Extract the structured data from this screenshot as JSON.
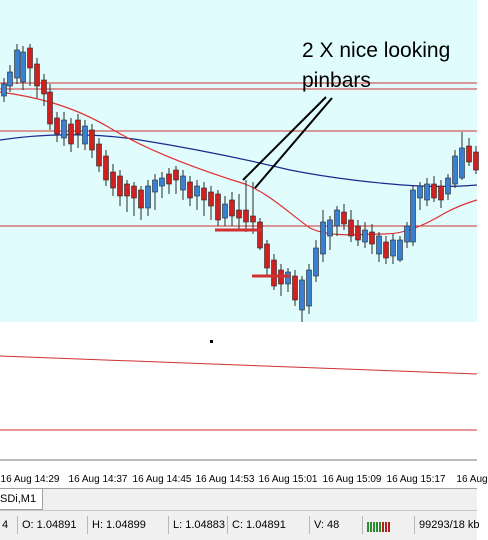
{
  "chart_data": {
    "type": "candlestick",
    "timeframe": "M1",
    "x_labels": [
      "16 Aug 14:29",
      "16 Aug 14:37",
      "16 Aug 14:45",
      "16 Aug 14:53",
      "16 Aug 15:01",
      "16 Aug 15:09",
      "16 Aug 15:17",
      "16 Aug"
    ],
    "annotation": [
      "2 X nice looking",
      "pinbars"
    ],
    "colors": {
      "highlight_zone": "#e0fcfc",
      "bull": "#3a7fd0",
      "bear": "#d02020",
      "wick": "#2a2a2a",
      "level_line": "#d03030",
      "ma_fast": "#e03030",
      "ma_slow": "#1a2a90",
      "arrow": "#000000"
    }
  },
  "tab": {
    "label": "SDi,M1"
  },
  "status": {
    "left_fragment": "4",
    "open": "O: 1.04891",
    "high": "H: 1.04899",
    "low": "L: 1.04883",
    "close": "C: 1.04891",
    "volume": "V: 48",
    "traffic": "99293/18 kb",
    "connection_icon": "connection-bars-icon"
  }
}
